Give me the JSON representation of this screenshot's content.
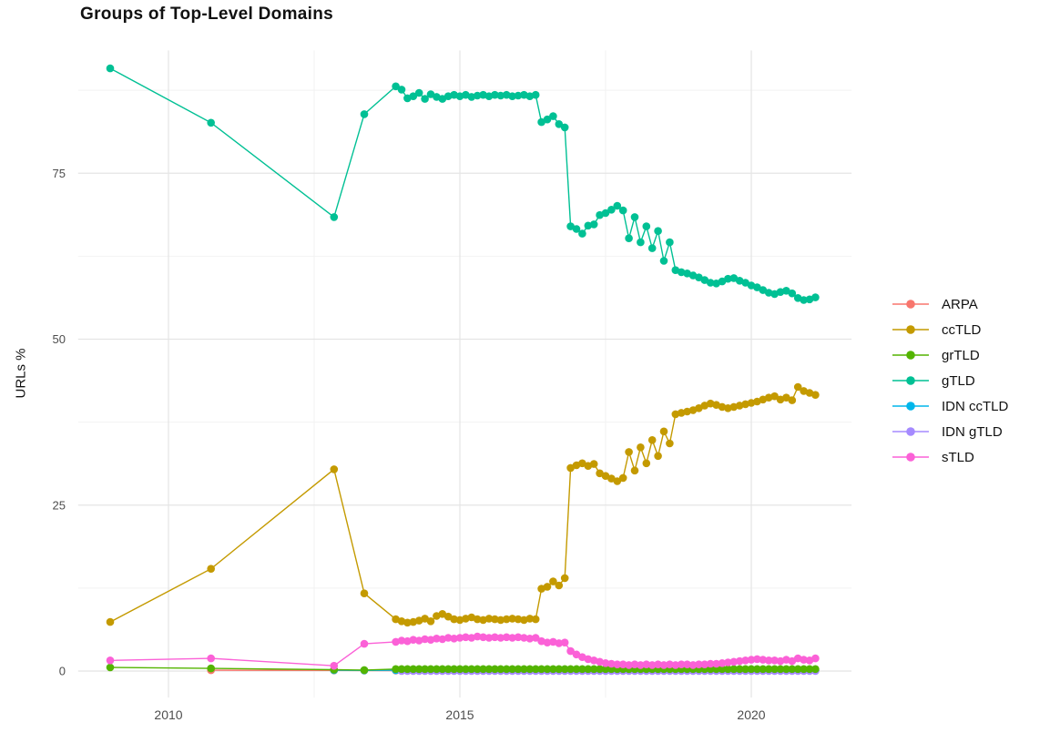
{
  "page": {
    "background": "#ffffff"
  },
  "colors": {
    "grid_major": "#e4e4e4",
    "grid_minor": "#f2f2f2",
    "tick_text": "#4d4d4d",
    "title_text": "#111111"
  },
  "chart_data": {
    "type": "line",
    "title": "Groups of Top-Level Domains",
    "xlabel": "",
    "ylabel": "URLs %",
    "grid": true,
    "legend_position": "right",
    "x_ticks": [
      2010,
      2015,
      2020
    ],
    "x_tick_labels": [
      "2010",
      "2015",
      "2020"
    ],
    "x_minor": [
      2012.5,
      2017.5
    ],
    "y_ticks": [
      0,
      25,
      50,
      75
    ],
    "y_tick_labels": [
      "0",
      "25",
      "50",
      "75"
    ],
    "y_minor": [
      12.5,
      37.5,
      62.5,
      87.5
    ],
    "x_range": [
      2008.45,
      2021.72
    ],
    "y_range": [
      -4.0,
      93.5
    ],
    "draw_order": [
      "ARPA",
      "IDN ccTLD",
      "IDN gTLD",
      "grTLD",
      "ccTLD",
      "gTLD",
      "sTLD"
    ],
    "series": [
      {
        "name": "ARPA",
        "color": "#F8766D",
        "points": [
          [
            2010.73,
            0.12
          ],
          [
            2012.84,
            0.1
          ],
          [
            2013.36,
            0.08
          ]
        ],
        "flat": {
          "from": 2013.9,
          "to": 2021.1,
          "step": 0.1,
          "value": 0.07
        }
      },
      {
        "name": "ccTLD",
        "color": "#C49A00",
        "points": [
          [
            2009.0,
            7.4
          ],
          [
            2010.73,
            15.4
          ],
          [
            2012.84,
            30.4
          ],
          [
            2013.36,
            11.7
          ]
        ],
        "dense": {
          "start": 2013.9,
          "step": 0.1,
          "values": [
            7.8,
            7.5,
            7.3,
            7.4,
            7.6,
            7.9,
            7.5,
            8.3,
            8.6,
            8.2,
            7.8,
            7.7,
            7.9,
            8.1,
            7.8,
            7.7,
            7.9,
            7.8,
            7.7,
            7.8,
            7.9,
            7.8,
            7.7,
            7.9,
            7.8,
            12.4,
            12.7,
            13.5,
            12.9,
            14.0,
            30.6,
            31.0,
            31.3,
            30.9,
            31.2,
            29.8,
            29.4,
            29.0,
            28.6,
            29.1,
            33.0,
            30.2,
            33.7,
            31.3,
            34.8,
            32.4,
            36.1,
            34.3,
            38.7,
            38.9,
            39.1,
            39.3,
            39.6,
            40.0,
            40.3,
            40.1,
            39.8,
            39.6,
            39.8,
            40.0,
            40.2,
            40.4,
            40.6,
            40.9,
            41.2,
            41.4,
            40.9,
            41.2,
            40.8,
            42.8,
            42.2,
            41.9,
            41.6
          ]
        }
      },
      {
        "name": "grTLD",
        "color": "#53B400",
        "points": [
          [
            2009.0,
            0.55
          ],
          [
            2010.73,
            0.4
          ],
          [
            2012.84,
            0.2
          ],
          [
            2013.36,
            0.15
          ]
        ],
        "flat": {
          "from": 2013.9,
          "to": 2021.1,
          "step": 0.1,
          "value": 0.3
        }
      },
      {
        "name": "gTLD",
        "color": "#00C094",
        "points": [
          [
            2009.0,
            90.8
          ],
          [
            2010.73,
            82.6
          ],
          [
            2012.84,
            68.4
          ],
          [
            2013.36,
            83.9
          ]
        ],
        "dense": {
          "start": 2013.9,
          "step": 0.1,
          "values": [
            88.1,
            87.6,
            86.3,
            86.6,
            87.1,
            86.2,
            86.9,
            86.5,
            86.2,
            86.6,
            86.8,
            86.6,
            86.8,
            86.5,
            86.7,
            86.8,
            86.6,
            86.8,
            86.7,
            86.8,
            86.6,
            86.7,
            86.8,
            86.6,
            86.8,
            82.7,
            83.1,
            83.6,
            82.4,
            81.9,
            67.0,
            66.6,
            65.9,
            67.1,
            67.3,
            68.7,
            69.0,
            69.5,
            70.1,
            69.4,
            65.2,
            68.4,
            64.6,
            67.0,
            63.7,
            66.3,
            61.8,
            64.6,
            60.4,
            60.1,
            59.9,
            59.6,
            59.3,
            58.9,
            58.5,
            58.4,
            58.7,
            59.1,
            59.2,
            58.8,
            58.5,
            58.1,
            57.8,
            57.4,
            57.0,
            56.8,
            57.1,
            57.3,
            56.9,
            56.2,
            55.9,
            56.0,
            56.3
          ]
        }
      },
      {
        "name": "IDN ccTLD",
        "color": "#00B6EB",
        "points": [
          [
            2012.84,
            0.12
          ],
          [
            2013.36,
            0.1
          ]
        ],
        "flat": {
          "from": 2013.9,
          "to": 2021.1,
          "step": 0.1,
          "value": 0.12
        }
      },
      {
        "name": "IDN gTLD",
        "color": "#A58AFF",
        "points": [],
        "flat": {
          "from": 2014.0,
          "to": 2021.1,
          "step": 0.1,
          "value": 0.02
        }
      },
      {
        "name": "sTLD",
        "color": "#FB61D7",
        "points": [
          [
            2009.0,
            1.6
          ],
          [
            2010.73,
            1.9
          ],
          [
            2012.84,
            0.8
          ],
          [
            2013.36,
            4.1
          ]
        ],
        "dense": {
          "start": 2013.9,
          "step": 0.1,
          "values": [
            4.4,
            4.6,
            4.5,
            4.7,
            4.6,
            4.8,
            4.7,
            4.9,
            4.8,
            5.0,
            4.9,
            5.0,
            5.1,
            5.0,
            5.2,
            5.1,
            5.0,
            5.1,
            5.0,
            5.1,
            5.0,
            5.1,
            5.0,
            4.9,
            5.0,
            4.5,
            4.3,
            4.4,
            4.2,
            4.3,
            3.0,
            2.5,
            2.1,
            1.8,
            1.6,
            1.4,
            1.2,
            1.1,
            1.0,
            1.0,
            0.9,
            1.0,
            0.9,
            1.0,
            0.9,
            1.0,
            0.9,
            1.0,
            0.9,
            1.0,
            1.0,
            0.9,
            1.0,
            1.0,
            1.1,
            1.1,
            1.2,
            1.3,
            1.4,
            1.5,
            1.6,
            1.7,
            1.8,
            1.7,
            1.6,
            1.6,
            1.5,
            1.7,
            1.5,
            1.9,
            1.7,
            1.6,
            1.9
          ]
        }
      }
    ]
  }
}
